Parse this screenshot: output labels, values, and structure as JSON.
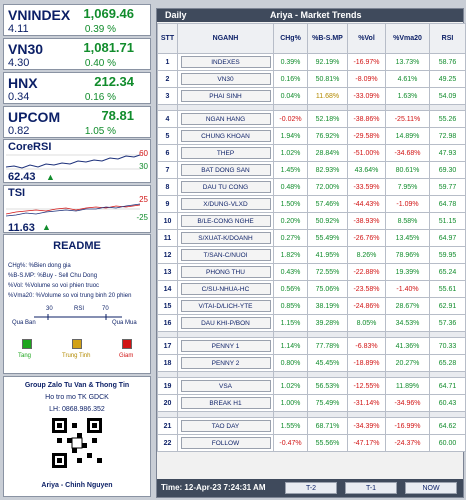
{
  "indices": [
    {
      "name": "VNINDEX",
      "value": "1,069.46",
      "change": "4.11",
      "percent": "0.39 %"
    },
    {
      "name": "VN30",
      "value": "1,081.71",
      "change": "4.30",
      "percent": "0.40 %"
    },
    {
      "name": "HNX",
      "value": "212.34",
      "change": "0.34",
      "percent": "0.16 %"
    },
    {
      "name": "UPCOM",
      "value": "78.81",
      "change": "0.82",
      "percent": "1.05 %"
    }
  ],
  "core_rsi": {
    "title": "CoreRSI",
    "value": "62.43",
    "axis_high": "60",
    "axis_low": "30"
  },
  "tsi": {
    "title": "TSI",
    "value": "11.63",
    "axis_high": "25",
    "axis_low": "-25"
  },
  "readme": {
    "title": "README",
    "notes": [
      "CHg%: %Bien dong gia",
      "%B-S.MP: %Buy - Sell Chu Dong",
      "%Vol: %Volume so voi phien truoc",
      "%Vma20: %Volume so voi trung binh 20 phien"
    ],
    "scale_labels": [
      "30",
      "RSI",
      "70"
    ],
    "zone_labels": [
      "Qua Ban",
      "Qua Mua"
    ],
    "signals": [
      {
        "label": "Tang",
        "color": "#1ea51e"
      },
      {
        "label": "Trung Tinh",
        "color": "#d1a117"
      },
      {
        "label": "Giam",
        "color": "#d11414"
      }
    ]
  },
  "group": {
    "title": "Group Zalo Tu Van & Thong Tin",
    "line1": "Ho tro mo TK GDCK",
    "line2": "LH: 0868.986.352",
    "author": "Ariya - Chinh Nguyen"
  },
  "panel": {
    "tab": "Daily",
    "title": "Ariya  -  Market Trends",
    "headers": [
      "STT",
      "NGANH",
      "CHg%",
      "%B-S.MP",
      "%Vol",
      "%Vma20",
      "RSI"
    ]
  },
  "rows": [
    {
      "stt": "1",
      "name": "INDEXES",
      "chg": "0.39%",
      "bs": "92.19%",
      "vol": "-16.97%",
      "vma": "13.73%",
      "rsi": "58.76",
      "chg_c": "pos",
      "bs_c": "pos",
      "vol_c": "neg",
      "vma_c": "pos"
    },
    {
      "stt": "2",
      "name": "VN30",
      "chg": "0.16%",
      "bs": "50.81%",
      "vol": "-8.09%",
      "vma": "4.61%",
      "rsi": "49.25",
      "chg_c": "pos",
      "bs_c": "pos",
      "vol_c": "neg",
      "vma_c": "pos"
    },
    {
      "stt": "3",
      "name": "PHAI SINH",
      "chg": "0.04%",
      "bs": "11.68%",
      "vol": "-33.09%",
      "vma": "1.63%",
      "rsi": "54.09",
      "chg_c": "pos",
      "bs_c": "warn",
      "vol_c": "neg",
      "vma_c": "pos"
    },
    {
      "gap": true
    },
    {
      "stt": "4",
      "name": "NGAN HANG",
      "chg": "-0.02%",
      "bs": "52.18%",
      "vol": "-38.86%",
      "vma": "-25.11%",
      "rsi": "55.26",
      "chg_c": "neg",
      "bs_c": "pos",
      "vol_c": "neg",
      "vma_c": "neg"
    },
    {
      "stt": "5",
      "name": "CHUNG KHOAN",
      "chg": "1.94%",
      "bs": "76.92%",
      "vol": "-29.58%",
      "vma": "14.89%",
      "rsi": "72.98",
      "chg_c": "pos",
      "bs_c": "pos",
      "vol_c": "neg",
      "vma_c": "pos"
    },
    {
      "stt": "6",
      "name": "THEP",
      "chg": "1.02%",
      "bs": "28.84%",
      "vol": "-51.00%",
      "vma": "-34.68%",
      "rsi": "47.93",
      "chg_c": "pos",
      "bs_c": "pos",
      "vol_c": "neg",
      "vma_c": "neg"
    },
    {
      "stt": "7",
      "name": "BAT DONG SAN",
      "chg": "1.45%",
      "bs": "82.93%",
      "vol": "43.64%",
      "vma": "80.61%",
      "rsi": "69.30",
      "chg_c": "pos",
      "bs_c": "pos",
      "vol_c": "pos",
      "vma_c": "pos"
    },
    {
      "stt": "8",
      "name": "DAU TU CONG",
      "chg": "0.48%",
      "bs": "72.00%",
      "vol": "-33.59%",
      "vma": "7.95%",
      "rsi": "59.77",
      "chg_c": "pos",
      "bs_c": "pos",
      "vol_c": "neg",
      "vma_c": "pos"
    },
    {
      "stt": "9",
      "name": "X/DUNG-VLXD",
      "chg": "1.50%",
      "bs": "57.46%",
      "vol": "-44.43%",
      "vma": "-1.09%",
      "rsi": "64.78",
      "chg_c": "pos",
      "bs_c": "pos",
      "vol_c": "neg",
      "vma_c": "neg"
    },
    {
      "stt": "10",
      "name": "B/LE-CONG NGHE",
      "chg": "0.20%",
      "bs": "50.92%",
      "vol": "-38.93%",
      "vma": "8.58%",
      "rsi": "51.15",
      "chg_c": "pos",
      "bs_c": "pos",
      "vol_c": "neg",
      "vma_c": "pos"
    },
    {
      "stt": "11",
      "name": "S/XUAT-K/DOANH",
      "chg": "0.27%",
      "bs": "55.49%",
      "vol": "-26.76%",
      "vma": "13.45%",
      "rsi": "64.97",
      "chg_c": "pos",
      "bs_c": "pos",
      "vol_c": "neg",
      "vma_c": "pos"
    },
    {
      "stt": "12",
      "name": "T/SAN-C/NUOI",
      "chg": "1.82%",
      "bs": "41.95%",
      "vol": "8.26%",
      "vma": "78.96%",
      "rsi": "59.95",
      "chg_c": "pos",
      "bs_c": "pos",
      "vol_c": "pos",
      "vma_c": "pos"
    },
    {
      "stt": "13",
      "name": "PHONG THU",
      "chg": "0.43%",
      "bs": "72.55%",
      "vol": "-22.88%",
      "vma": "19.39%",
      "rsi": "65.24",
      "chg_c": "pos",
      "bs_c": "pos",
      "vol_c": "neg",
      "vma_c": "pos"
    },
    {
      "stt": "14",
      "name": "C/SU-NHUA-HC",
      "chg": "0.56%",
      "bs": "75.06%",
      "vol": "-23.58%",
      "vma": "-1.40%",
      "rsi": "55.61",
      "chg_c": "pos",
      "bs_c": "pos",
      "vol_c": "neg",
      "vma_c": "neg"
    },
    {
      "stt": "15",
      "name": "V/TAI-D/LICH-YTE",
      "chg": "0.85%",
      "bs": "38.19%",
      "vol": "-24.86%",
      "vma": "28.67%",
      "rsi": "62.91",
      "chg_c": "pos",
      "bs_c": "pos",
      "vol_c": "neg",
      "vma_c": "pos"
    },
    {
      "stt": "16",
      "name": "DAU KHI-P/BON",
      "chg": "1.15%",
      "bs": "39.28%",
      "vol": "8.05%",
      "vma": "34.53%",
      "rsi": "57.36",
      "chg_c": "pos",
      "bs_c": "pos",
      "vol_c": "pos",
      "vma_c": "pos"
    },
    {
      "gap": true
    },
    {
      "stt": "17",
      "name": "PENNY 1",
      "chg": "1.14%",
      "bs": "77.78%",
      "vol": "-6.83%",
      "vma": "41.36%",
      "rsi": "70.33",
      "chg_c": "pos",
      "bs_c": "pos",
      "vol_c": "neg",
      "vma_c": "pos"
    },
    {
      "stt": "18",
      "name": "PENNY 2",
      "chg": "0.80%",
      "bs": "45.45%",
      "vol": "-18.89%",
      "vma": "20.27%",
      "rsi": "65.28",
      "chg_c": "pos",
      "bs_c": "pos",
      "vol_c": "neg",
      "vma_c": "pos"
    },
    {
      "gap": true
    },
    {
      "stt": "19",
      "name": "VSA",
      "chg": "1.02%",
      "bs": "56.53%",
      "vol": "-12.55%",
      "vma": "11.89%",
      "rsi": "64.71",
      "chg_c": "pos",
      "bs_c": "pos",
      "vol_c": "neg",
      "vma_c": "pos"
    },
    {
      "stt": "20",
      "name": "BREAK H1",
      "chg": "1.00%",
      "bs": "75.49%",
      "vol": "-31.14%",
      "vma": "-34.96%",
      "rsi": "60.43",
      "chg_c": "pos",
      "bs_c": "pos",
      "vol_c": "neg",
      "vma_c": "neg"
    },
    {
      "gap": true
    },
    {
      "stt": "21",
      "name": "TAO DAY",
      "chg": "1.55%",
      "bs": "68.71%",
      "vol": "-34.39%",
      "vma": "-16.99%",
      "rsi": "64.62",
      "chg_c": "pos",
      "bs_c": "pos",
      "vol_c": "neg",
      "vma_c": "neg"
    },
    {
      "stt": "22",
      "name": "FOLLOW",
      "chg": "-0.47%",
      "bs": "55.56%",
      "vol": "-47.17%",
      "vma": "-24.37%",
      "rsi": "60.00",
      "chg_c": "neg",
      "bs_c": "pos",
      "vol_c": "neg",
      "vma_c": "neg"
    }
  ],
  "footer": {
    "time": "Time: 12-Apr-23 7:24:31 AM",
    "buttons": [
      "T-2",
      "T-1",
      "NOW"
    ]
  }
}
